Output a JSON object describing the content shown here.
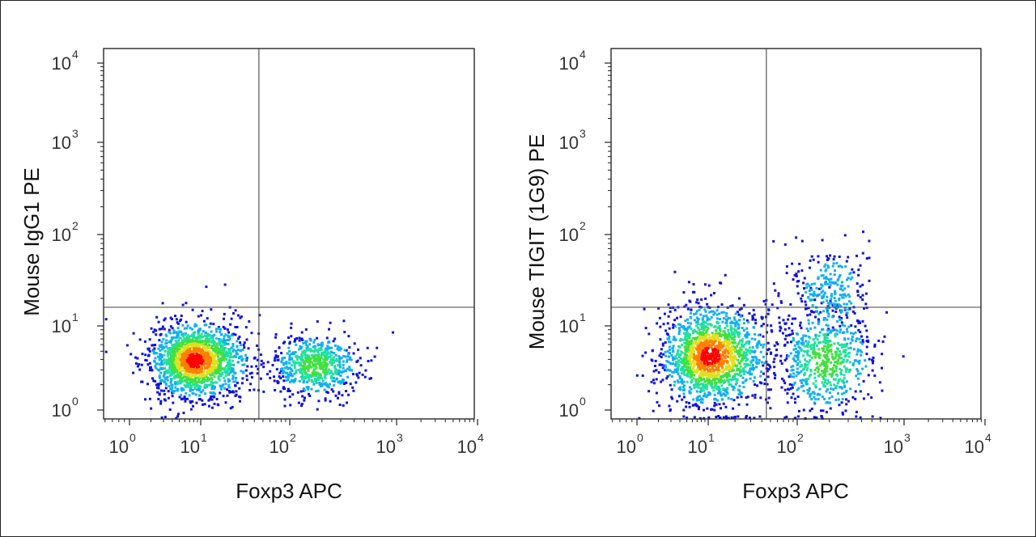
{
  "chart_data": [
    {
      "type": "scatter",
      "subtype": "flow-cytometry-density-dot-plot",
      "title": "",
      "xlabel": "Foxp3 APC",
      "ylabel": "Mouse IgG1 PE",
      "x_scale": "log",
      "y_scale": "log",
      "xlim": [
        0.6,
        10000
      ],
      "ylim": [
        0.9,
        20000
      ],
      "x_ticks": [
        {
          "base": "10",
          "exp": "0"
        },
        {
          "base": "10",
          "exp": "1"
        },
        {
          "base": "10",
          "exp": "2"
        },
        {
          "base": "10",
          "exp": "3"
        },
        {
          "base": "10",
          "exp": "4"
        }
      ],
      "y_ticks": [
        {
          "base": "10",
          "exp": "0"
        },
        {
          "base": "10",
          "exp": "1"
        },
        {
          "base": "10",
          "exp": "2"
        },
        {
          "base": "10",
          "exp": "3"
        },
        {
          "base": "10",
          "exp": "4"
        }
      ],
      "quadrant_gate": {
        "x": 45,
        "y": 16
      },
      "density_colormap": [
        "#1010e0",
        "#10b0f0",
        "#20e0a0",
        "#40e040",
        "#e0e020",
        "#ff8000",
        "#ff0000"
      ],
      "clusters": [
        {
          "label": "",
          "center": [
            8,
            4.0
          ],
          "spread": [
            0.3,
            0.22
          ],
          "density": "high"
        },
        {
          "label": "",
          "center": [
            170,
            3.5
          ],
          "spread": [
            0.2,
            0.18
          ],
          "density": "medium"
        }
      ]
    },
    {
      "type": "scatter",
      "subtype": "flow-cytometry-density-dot-plot",
      "title": "",
      "xlabel": "Foxp3 APC",
      "ylabel": "Mouse TIGIT (1G9) PE",
      "x_scale": "log",
      "y_scale": "log",
      "xlim": [
        0.6,
        10000
      ],
      "ylim": [
        0.9,
        20000
      ],
      "x_ticks": [
        {
          "base": "10",
          "exp": "0"
        },
        {
          "base": "10",
          "exp": "1"
        },
        {
          "base": "10",
          "exp": "2"
        },
        {
          "base": "10",
          "exp": "3"
        },
        {
          "base": "10",
          "exp": "4"
        }
      ],
      "y_ticks": [
        {
          "base": "10",
          "exp": "0"
        },
        {
          "base": "10",
          "exp": "1"
        },
        {
          "base": "10",
          "exp": "2"
        },
        {
          "base": "10",
          "exp": "3"
        },
        {
          "base": "10",
          "exp": "4"
        }
      ],
      "quadrant_gate": {
        "x": 45,
        "y": 16
      },
      "density_colormap": [
        "#1010e0",
        "#10b0f0",
        "#20e0a0",
        "#40e040",
        "#e0e020",
        "#ff8000",
        "#ff0000"
      ],
      "clusters": [
        {
          "label": "",
          "center": [
            10,
            4.5
          ],
          "spread": [
            0.32,
            0.28
          ],
          "density": "high"
        },
        {
          "label": "",
          "center": [
            180,
            4.0
          ],
          "spread": [
            0.22,
            0.3
          ],
          "density": "medium"
        },
        {
          "label": "",
          "center": [
            200,
            25
          ],
          "spread": [
            0.18,
            0.25
          ],
          "density": "low"
        }
      ]
    }
  ]
}
